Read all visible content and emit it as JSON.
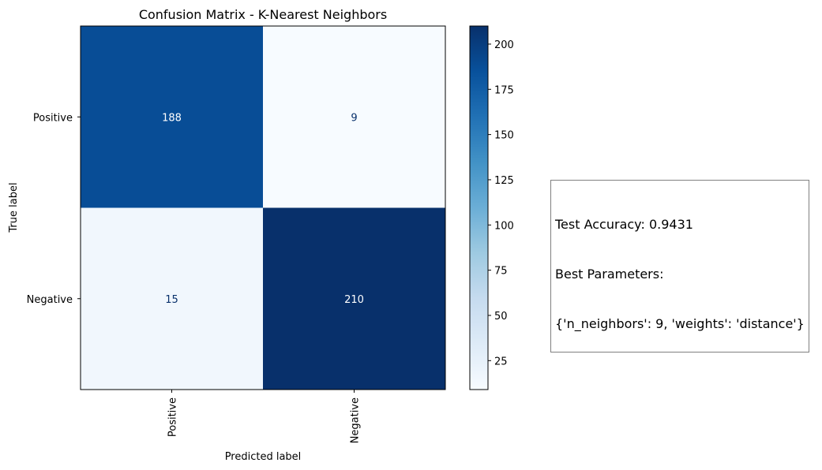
{
  "chart_data": {
    "type": "heatmap",
    "title": "Confusion Matrix - K-Nearest Neighbors",
    "xlabel": "Predicted label",
    "ylabel": "True label",
    "x_categories": [
      "Positive",
      "Negative"
    ],
    "y_categories": [
      "Positive",
      "Negative"
    ],
    "values": [
      [
        188,
        9
      ],
      [
        15,
        210
      ]
    ],
    "colormap": "Blues",
    "colorbar": {
      "range": [
        9,
        210
      ],
      "ticks": [
        25,
        50,
        75,
        100,
        125,
        150,
        175,
        200
      ]
    },
    "grid": false
  },
  "info": {
    "line1": "Test Accuracy: 0.9431",
    "line2": "Best Parameters:",
    "line3": "{'n_neighbors': 9, 'weights': 'distance'}"
  }
}
